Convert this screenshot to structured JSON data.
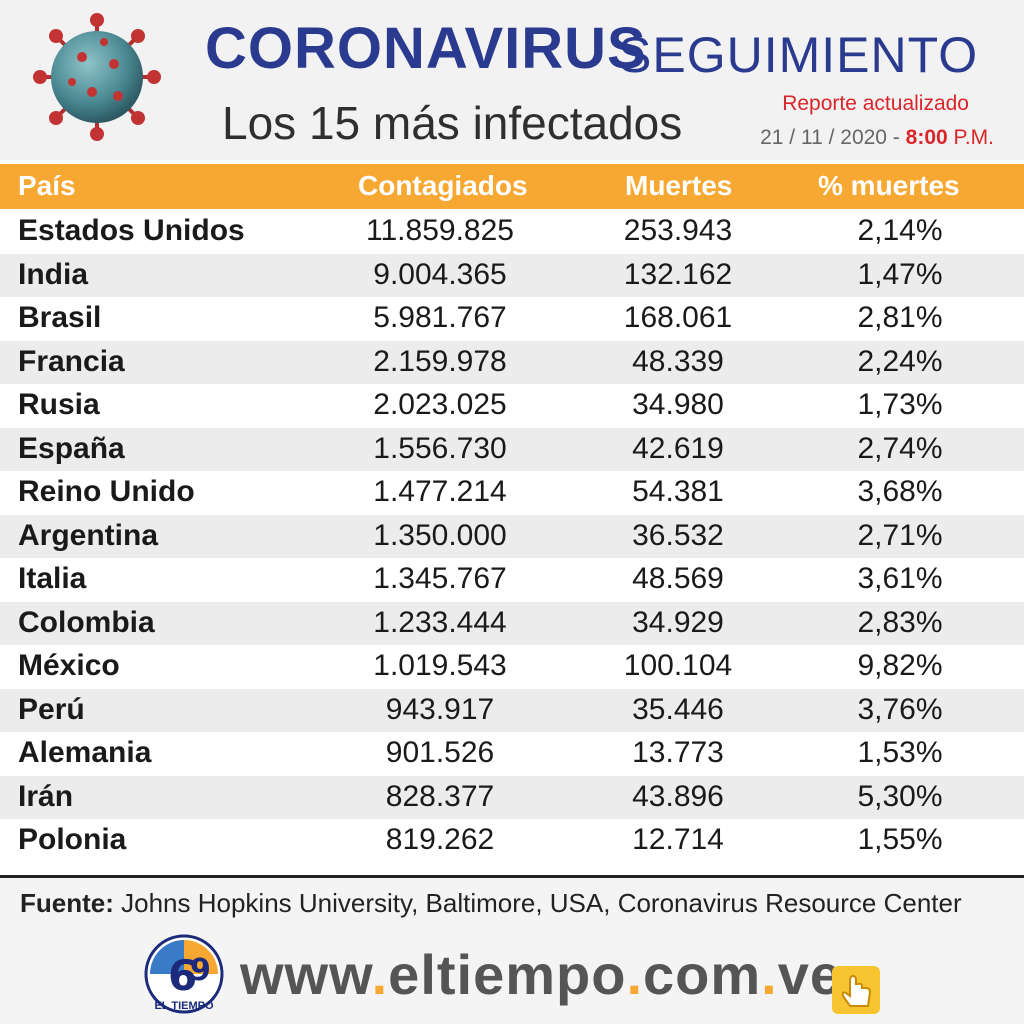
{
  "header": {
    "title_main": "CORONAVIRUS",
    "title_sub": "SEGUIMIENTO",
    "subtitle": "Los 15 más infectados",
    "report_label": "Reporte actualizado",
    "report_date": "21 / 11 / 2020 -",
    "report_time": "8:00",
    "report_ampm": "P.M."
  },
  "table": {
    "columns": [
      "País",
      "Contagiados",
      "Muertes",
      "% muertes"
    ],
    "rows": [
      {
        "pais": "Estados Unidos",
        "contagiados": "11.859.825",
        "muertes": "253.943",
        "pct": "2,14%"
      },
      {
        "pais": "India",
        "contagiados": "9.004.365",
        "muertes": "132.162",
        "pct": "1,47%"
      },
      {
        "pais": "Brasil",
        "contagiados": "5.981.767",
        "muertes": "168.061",
        "pct": "2,81%"
      },
      {
        "pais": "Francia",
        "contagiados": "2.159.978",
        "muertes": "48.339",
        "pct": "2,24%"
      },
      {
        "pais": "Rusia",
        "contagiados": "2.023.025",
        "muertes": "34.980",
        "pct": "1,73%"
      },
      {
        "pais": "España",
        "contagiados": "1.556.730",
        "muertes": "42.619",
        "pct": "2,74%"
      },
      {
        "pais": "Reino Unido",
        "contagiados": "1.477.214",
        "muertes": "54.381",
        "pct": "3,68%"
      },
      {
        "pais": "Argentina",
        "contagiados": "1.350.000",
        "muertes": "36.532",
        "pct": "2,71%"
      },
      {
        "pais": "Italia",
        "contagiados": "1.345.767",
        "muertes": "48.569",
        "pct": "3,61%"
      },
      {
        "pais": "Colombia",
        "contagiados": "1.233.444",
        "muertes": "34.929",
        "pct": "2,83%"
      },
      {
        "pais": "México",
        "contagiados": "1.019.543",
        "muertes": "100.104",
        "pct": "9,82%"
      },
      {
        "pais": "Perú",
        "contagiados": "943.917",
        "muertes": "35.446",
        "pct": "3,76%"
      },
      {
        "pais": "Alemania",
        "contagiados": "901.526",
        "muertes": "13.773",
        "pct": "1,53%"
      },
      {
        "pais": "Irán",
        "contagiados": "828.377",
        "muertes": "43.896",
        "pct": "5,30%"
      },
      {
        "pais": "Polonia",
        "contagiados": "819.262",
        "muertes": "12.714",
        "pct": "1,55%"
      }
    ]
  },
  "footer": {
    "source_label": "Fuente:",
    "source_text": " Johns Hopkins University, Baltimore, USA, Coronavirus Resource Center",
    "logo_text": "EL TIEMPO",
    "url_parts": [
      "www",
      ".",
      "eltiempo",
      ".",
      "com",
      ".",
      "ve"
    ]
  },
  "icons": {
    "virus": "coronavirus-icon",
    "hand": "pointing-hand-icon"
  },
  "colors": {
    "title_blue": "#2a3a8f",
    "header_orange": "#f7a833",
    "report_red": "#d8262b"
  }
}
